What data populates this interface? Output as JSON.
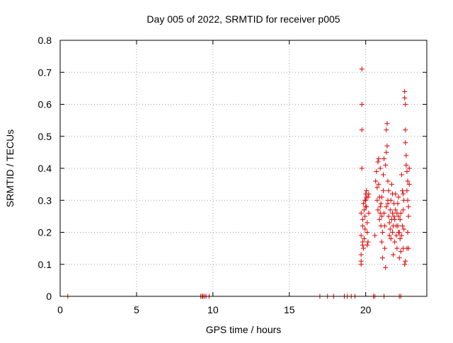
{
  "chart_data": {
    "type": "scatter",
    "title": "Day 005 of 2022, SRMTID for receiver p005",
    "xlabel": "GPS time / hours",
    "ylabel": "SRMTID / TECUs",
    "xlim": [
      0,
      24
    ],
    "ylim": [
      0,
      0.8
    ],
    "xticks": [
      "0",
      "5",
      "10",
      "15",
      "20"
    ],
    "yticks": [
      "0",
      "0.1",
      "0.2",
      "0.3",
      "0.4",
      "0.5",
      "0.6",
      "0.7",
      "0.8"
    ],
    "grid": true,
    "marker": "+",
    "series": [
      {
        "color": "#e00000",
        "points": [
          [
            0.5,
            0
          ],
          [
            9.2,
            0
          ],
          [
            9.3,
            0
          ],
          [
            9.35,
            0
          ],
          [
            9.45,
            0
          ],
          [
            9.55,
            0
          ],
          [
            9.75,
            0
          ],
          [
            17.0,
            0
          ],
          [
            17.5,
            0
          ],
          [
            17.9,
            0
          ],
          [
            18.6,
            0
          ],
          [
            18.8,
            0
          ],
          [
            19.05,
            0
          ],
          [
            19.3,
            0
          ],
          [
            20.5,
            0
          ],
          [
            20.6,
            0
          ],
          [
            21.2,
            0
          ],
          [
            22.2,
            0
          ],
          [
            22.3,
            0
          ],
          [
            19.75,
            0.71
          ],
          [
            19.75,
            0.6
          ],
          [
            19.75,
            0.52
          ],
          [
            19.75,
            0.4
          ],
          [
            19.7,
            0.26
          ],
          [
            19.7,
            0.19
          ],
          [
            19.7,
            0.13
          ],
          [
            19.7,
            0.11
          ],
          [
            19.7,
            0.1
          ],
          [
            19.8,
            0.24
          ],
          [
            19.85,
            0.29
          ],
          [
            19.8,
            0.22
          ],
          [
            19.8,
            0.17
          ],
          [
            19.8,
            0.16
          ],
          [
            19.85,
            0.15
          ],
          [
            19.9,
            0.18
          ],
          [
            19.9,
            0.27
          ],
          [
            19.95,
            0.3
          ],
          [
            19.95,
            0.25
          ],
          [
            20.0,
            0.32
          ],
          [
            20.0,
            0.28
          ],
          [
            20.05,
            0.33
          ],
          [
            20.05,
            0.31
          ],
          [
            20.1,
            0.23
          ],
          [
            20.1,
            0.2
          ],
          [
            20.15,
            0.17
          ],
          [
            20.15,
            0.31
          ],
          [
            20.2,
            0.32
          ],
          [
            20.2,
            0.26
          ],
          [
            20.1,
            0.16
          ],
          [
            20.6,
            0.19
          ],
          [
            20.65,
            0.36
          ],
          [
            20.7,
            0.39
          ],
          [
            20.75,
            0.34
          ],
          [
            20.75,
            0.3
          ],
          [
            20.8,
            0.42
          ],
          [
            20.8,
            0.27
          ],
          [
            20.85,
            0.43
          ],
          [
            20.85,
            0.35
          ],
          [
            20.9,
            0.24
          ],
          [
            20.9,
            0.31
          ],
          [
            20.95,
            0.28
          ],
          [
            20.95,
            0.4
          ],
          [
            21.0,
            0.22
          ],
          [
            21.0,
            0.29
          ],
          [
            21.05,
            0.25
          ],
          [
            21.05,
            0.17
          ],
          [
            21.1,
            0.2
          ],
          [
            21.1,
            0.12
          ],
          [
            21.15,
            0.33
          ],
          [
            21.15,
            0.38
          ],
          [
            21.2,
            0.43
          ],
          [
            21.2,
            0.26
          ],
          [
            21.25,
            0.22
          ],
          [
            21.25,
            0.15
          ],
          [
            21.3,
            0.09
          ],
          [
            21.3,
            0.41
          ],
          [
            21.35,
            0.45
          ],
          [
            21.35,
            0.52
          ],
          [
            21.4,
            0.54
          ],
          [
            21.4,
            0.47
          ],
          [
            21.45,
            0.36
          ],
          [
            21.45,
            0.29
          ],
          [
            21.5,
            0.33
          ],
          [
            21.5,
            0.25
          ],
          [
            21.55,
            0.23
          ],
          [
            21.55,
            0.19
          ],
          [
            21.6,
            0.27
          ],
          [
            21.6,
            0.21
          ],
          [
            21.65,
            0.18
          ],
          [
            21.65,
            0.3
          ],
          [
            21.7,
            0.24
          ],
          [
            21.7,
            0.35
          ],
          [
            21.75,
            0.26
          ],
          [
            21.75,
            0.2
          ],
          [
            21.8,
            0.13
          ],
          [
            21.8,
            0.22
          ],
          [
            21.85,
            0.29
          ],
          [
            21.85,
            0.25
          ],
          [
            21.9,
            0.17
          ],
          [
            21.9,
            0.24
          ],
          [
            21.95,
            0.32
          ],
          [
            21.95,
            0.27
          ],
          [
            22.0,
            0.22
          ],
          [
            22.0,
            0.19
          ],
          [
            22.05,
            0.26
          ],
          [
            22.05,
            0.15
          ],
          [
            22.1,
            0.22
          ],
          [
            22.1,
            0.29
          ],
          [
            22.15,
            0.25
          ],
          [
            22.15,
            0.31
          ],
          [
            22.2,
            0.2
          ],
          [
            22.2,
            0.12
          ],
          [
            22.25,
            0.18
          ],
          [
            22.25,
            0.24
          ],
          [
            22.3,
            0.26
          ],
          [
            22.3,
            0.14
          ],
          [
            22.35,
            0.19
          ],
          [
            22.35,
            0.38
          ],
          [
            22.4,
            0.33
          ],
          [
            22.4,
            0.22
          ],
          [
            22.45,
            0.27
          ],
          [
            22.45,
            0.15
          ],
          [
            22.5,
            0.3
          ],
          [
            22.5,
            0.21
          ],
          [
            22.55,
            0.64
          ],
          [
            22.55,
            0.62
          ],
          [
            22.6,
            0.6
          ],
          [
            22.6,
            0.52
          ],
          [
            22.6,
            0.48
          ],
          [
            22.65,
            0.44
          ],
          [
            22.65,
            0.41
          ],
          [
            22.7,
            0.39
          ],
          [
            22.7,
            0.33
          ],
          [
            22.75,
            0.36
          ],
          [
            22.75,
            0.3
          ],
          [
            22.8,
            0.28
          ],
          [
            22.8,
            0.25
          ],
          [
            22.85,
            0.35
          ],
          [
            22.85,
            0.4
          ],
          [
            22.6,
            0.11
          ],
          [
            22.55,
            0.1
          ],
          [
            22.7,
            0.15
          ],
          [
            22.75,
            0.2
          ],
          [
            22.8,
            0.15
          ],
          [
            21.05,
            0.31
          ],
          [
            20.95,
            0.26
          ],
          [
            21.45,
            0.3
          ],
          [
            21.75,
            0.32
          ],
          [
            22.15,
            0.2
          ],
          [
            19.95,
            0.21
          ],
          [
            20.05,
            0.28
          ],
          [
            20.0,
            0.3
          ],
          [
            21.35,
            0.28
          ],
          [
            22.45,
            0.32
          ]
        ]
      }
    ]
  }
}
